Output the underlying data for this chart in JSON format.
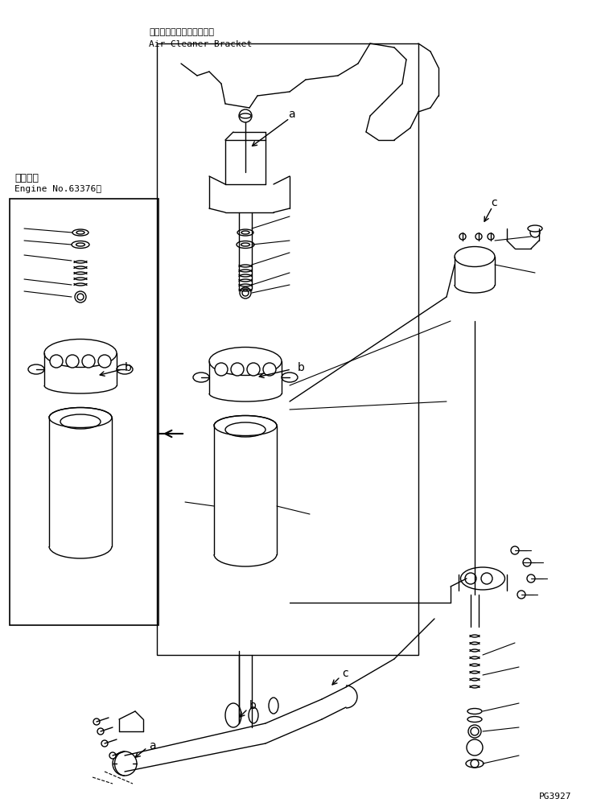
{
  "title": "PG3927",
  "label_air_cleaner_jp": "エアークリーナブラケット",
  "label_air_cleaner_en": "Air Cleaner Bracket",
  "label_engine_jp": "適用号機",
  "label_engine_en": "Engine No.63376～",
  "label_a1": "a",
  "label_b1": "b",
  "label_b2": "b",
  "label_c1": "c",
  "label_c2": "c",
  "label_a2": "a",
  "label_b3": "b",
  "bg_color": "#ffffff",
  "line_color": "#000000",
  "box_color": "#000000"
}
